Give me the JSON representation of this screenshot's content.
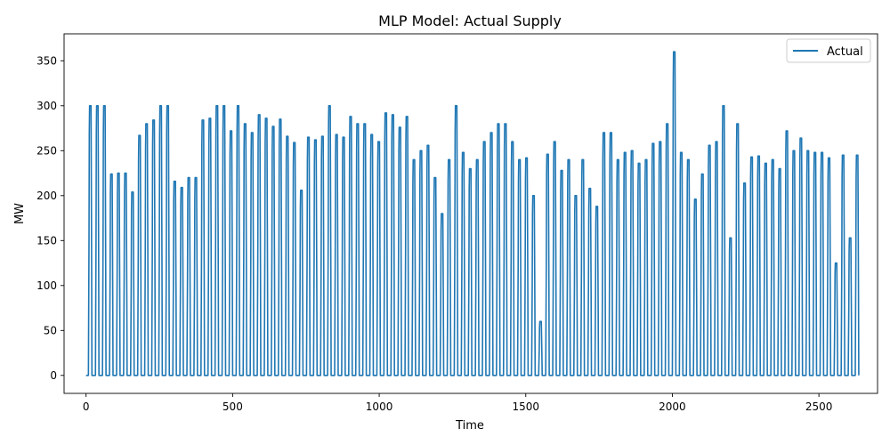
{
  "chart_data": {
    "type": "line",
    "title": "MLP Model: Actual Supply",
    "xlabel": "Time",
    "ylabel": "MW",
    "xlim": [
      -75,
      2700
    ],
    "ylim": [
      -20,
      380
    ],
    "xticks": [
      0,
      500,
      1000,
      1500,
      2000,
      2500
    ],
    "yticks": [
      0,
      50,
      100,
      150,
      200,
      250,
      300,
      350
    ],
    "grid": false,
    "legend_position": "top-right",
    "series": [
      {
        "name": "Actual",
        "color": "#1f77b4",
        "cycle_period": 24,
        "peaks": [
          300,
          300,
          300,
          224,
          225,
          225,
          204,
          267,
          280,
          284,
          300,
          300,
          216,
          209,
          220,
          220,
          284,
          286,
          300,
          300,
          272,
          300,
          280,
          270,
          290,
          286,
          277,
          285,
          266,
          259,
          206,
          265,
          262,
          266,
          300,
          268,
          265,
          288,
          280,
          280,
          268,
          260,
          292,
          290,
          276,
          288,
          240,
          250,
          256,
          220,
          180,
          240,
          300,
          248,
          230,
          240,
          260,
          270,
          280,
          280,
          260,
          240,
          242,
          200,
          60,
          246,
          260,
          228,
          240,
          200,
          240,
          208,
          188,
          270,
          270,
          240,
          248,
          250,
          236,
          240,
          258,
          260,
          280,
          360,
          248,
          240,
          196,
          224,
          256,
          260,
          300,
          153,
          280,
          214,
          243,
          244,
          236,
          240,
          230,
          272,
          250,
          264,
          250,
          248,
          248,
          242,
          125,
          245,
          153,
          245
        ]
      }
    ]
  }
}
